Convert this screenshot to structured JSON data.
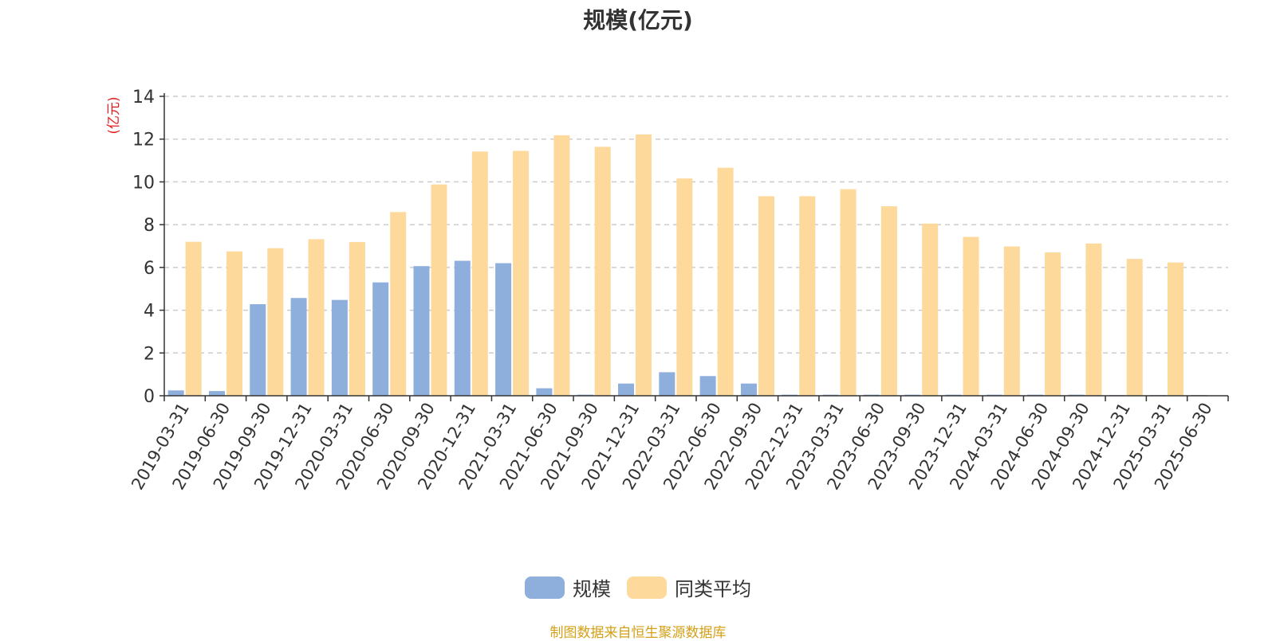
{
  "chart_data": {
    "type": "bar",
    "title": "规模(亿元)",
    "ylabel": "(亿元)",
    "xlabel": "",
    "ylim": [
      0,
      14
    ],
    "yticks": [
      0,
      2,
      4,
      6,
      8,
      10,
      12,
      14
    ],
    "grid": true,
    "legend_position": "bottom",
    "categories": [
      "2019-03-31",
      "2019-06-30",
      "2019-09-30",
      "2019-12-31",
      "2020-03-31",
      "2020-06-30",
      "2020-09-30",
      "2020-12-31",
      "2021-03-31",
      "2021-06-30",
      "2021-09-30",
      "2021-12-31",
      "2022-03-31",
      "2022-06-30",
      "2022-09-30",
      "2022-12-31",
      "2023-03-31",
      "2023-06-30",
      "2023-09-30",
      "2023-12-31",
      "2024-03-31",
      "2024-06-30",
      "2024-09-30",
      "2024-12-31",
      "2025-03-31",
      "2025-06-30"
    ],
    "series": [
      {
        "name": "规模",
        "color": "#8eaedc",
        "values": [
          0.25,
          0.22,
          4.28,
          4.57,
          4.48,
          5.3,
          6.06,
          6.31,
          6.2,
          0.35,
          0.05,
          0.57,
          1.1,
          0.92,
          0.57,
          0.05,
          0.05,
          0.05,
          0.05,
          0.05,
          0.05,
          0.05,
          0.05,
          0.03,
          0.03,
          0.03
        ]
      },
      {
        "name": "同类平均",
        "color": "#fdd99b",
        "values": [
          7.2,
          6.75,
          6.9,
          7.32,
          7.19,
          8.59,
          9.88,
          11.42,
          11.45,
          12.18,
          11.64,
          12.22,
          10.16,
          10.66,
          9.33,
          9.33,
          9.66,
          8.86,
          8.05,
          7.43,
          6.98,
          6.7,
          7.12,
          6.4,
          6.23,
          0
        ]
      }
    ]
  },
  "source_note": "制图数据来自恒生聚源数据库"
}
